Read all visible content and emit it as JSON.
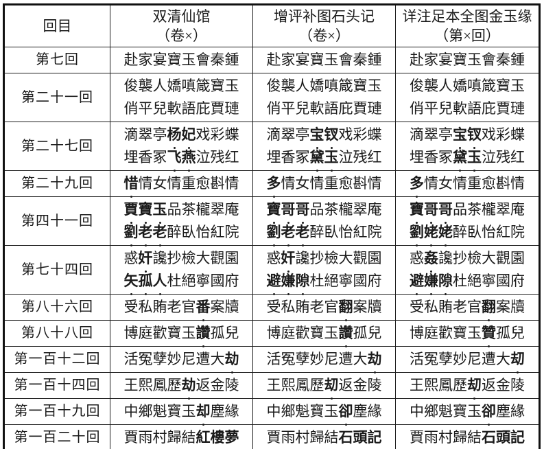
{
  "colors": {
    "text": "#1b1b1b",
    "border": "#111111",
    "background": "#ffffff"
  },
  "table": {
    "emphasis_marker": "**",
    "header": {
      "chapter_col": "回目",
      "edition_cols": [
        {
          "name": "双清仙馆",
          "volume_note": "（卷×）"
        },
        {
          "name": "增评补图石头记",
          "volume_note": "（卷×）"
        },
        {
          "name": "详注足本全图金玉缘",
          "volume_note": "（第×回）"
        }
      ]
    },
    "rows": [
      {
        "chapter": "第七回",
        "editions": [
          [
            "赴家宴寶玉會秦鍾"
          ],
          [
            "赴家宴寶玉會秦鍾"
          ],
          [
            "赴家宴寶玉會秦鍾"
          ]
        ]
      },
      {
        "chapter": "第二十一回",
        "editions": [
          [
            "俊襲人嬌嗔箴寶玉",
            "俏平兒軟語庇賈璉"
          ],
          [
            "俊襲人嬌嗔箴寶玉",
            "俏平兒軟語庇賈璉"
          ],
          [
            "俊襲人嬌嗔箴寶玉",
            "俏平兒軟語庇賈璉"
          ]
        ]
      },
      {
        "chapter": "第二十七回",
        "editions": [
          [
            "滴翠亭**杨妃**戏彩蝶",
            "埋香冢**飞燕**泣残红"
          ],
          [
            "滴翠亭**宝钗**戏彩蝶",
            "埋香冢**黛玉**泣残红"
          ],
          [
            "滴翠亭**宝钗**戏彩蝶",
            "埋香冢**黛玉**泣残红"
          ]
        ]
      },
      {
        "chapter": "第二十九回",
        "editions": [
          [
            "**惜**情女情重愈斟情"
          ],
          [
            "**多**情女情重愈斟情"
          ],
          [
            "**多**情女情重愈斟情"
          ]
        ]
      },
      {
        "chapter": "第四十一回",
        "editions": [
          [
            "**賈寶玉**品茶櫳翠庵",
            "**劉老老**醉臥怡紅院"
          ],
          [
            "**寶哥哥**品茶櫳翠庵",
            "**劉老老**醉臥怡紅院"
          ],
          [
            "**寶哥哥**品茶櫳翠庵",
            "**劉姥姥**醉臥怡紅院"
          ]
        ]
      },
      {
        "chapter": "第七十四回",
        "editions": [
          [
            "惑**奸**讒抄檢大觀園",
            "**矢孤人**杜絕寧國府"
          ],
          [
            "惑**奸**讒抄檢大觀園",
            "**避嫌隙**杜絕寧國府"
          ],
          [
            "惑**姦**讒抄檢大觀園",
            "**避嫌隙**杜絕寧國府"
          ]
        ]
      },
      {
        "chapter": "第八十六回",
        "editions": [
          [
            "受私賄老官**番**案牘"
          ],
          [
            "受私賄老官**翻**案牘"
          ],
          [
            "受私賄老官**翻**案牘"
          ]
        ]
      },
      {
        "chapter": "第八十八回",
        "editions": [
          [
            "博庭歡寶玉**讚**孤兒"
          ],
          [
            "博庭歡寶玉**讚**孤兒"
          ],
          [
            "博庭歡寶玉**贊**孤兒"
          ]
        ]
      },
      {
        "chapter": "第一百十二回",
        "editions": [
          [
            "活冤孽妙尼遭大**劫**"
          ],
          [
            "活冤孽妙尼遭大**劫**"
          ],
          [
            "活冤孽妙尼遭大**刧**"
          ]
        ]
      },
      {
        "chapter": "第一百十四回",
        "editions": [
          [
            "王熙鳳歷**劫**返金陵"
          ],
          [
            "王熙鳳歷**刧**返金陵"
          ],
          [
            "王熙鳳歷**刧**返金陵"
          ]
        ]
      },
      {
        "chapter": "第一百十九回",
        "editions": [
          [
            "中鄉魁寶玉**却**塵緣"
          ],
          [
            "中鄉魁寶玉**卻**塵緣"
          ],
          [
            "中鄉魁寶玉**卻**塵緣"
          ]
        ]
      },
      {
        "chapter": "第一百二十回",
        "editions": [
          [
            "賈雨村歸結**紅樓夢**"
          ],
          [
            "賈雨村歸結**石頭記**"
          ],
          [
            "賈雨村歸結**石頭記**"
          ]
        ]
      }
    ]
  }
}
